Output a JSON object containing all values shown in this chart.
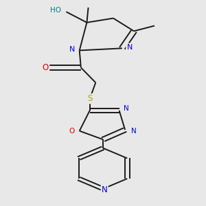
{
  "background_color": "#e8e8e8",
  "figsize": [
    3.0,
    3.0
  ],
  "dpi": 100,
  "bond_color": "#1a1a1a",
  "lw": 1.4,
  "atom_colors": {
    "N": "#0000dd",
    "O": "#dd0000",
    "S": "#aaaa00",
    "C": "#1a1a1a",
    "HO": "#008080"
  },
  "xlim": [
    0.15,
    0.85
  ],
  "ylim": [
    0.02,
    0.98
  ]
}
